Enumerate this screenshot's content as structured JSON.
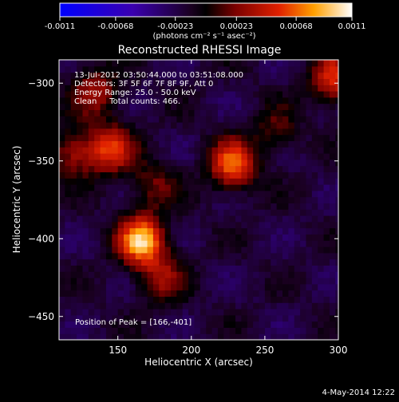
{
  "colorbar": {
    "tick_labels": [
      "-0.0011",
      "-0.00068",
      "-0.00023",
      "0.00023",
      "0.00068",
      "0.0011"
    ],
    "unit_label": "(photons cm⁻² s⁻¹ asec⁻²)",
    "range": [
      -0.0011,
      0.0011
    ]
  },
  "chart_data": {
    "type": "heatmap",
    "title": "Reconstructed RHESSI Image",
    "xlabel": "Heliocentric X (arcsec)",
    "ylabel": "Heliocentric Y (arcsec)",
    "xlim": [
      110,
      300
    ],
    "ylim": [
      -465,
      -285
    ],
    "x_ticks": [
      150,
      200,
      250,
      300
    ],
    "y_ticks": [
      -300,
      -350,
      -400,
      -450
    ],
    "annotation_lines": [
      "13-Jul-2012 03:50:44.000 to 03:51:08.000",
      "Detectors: 3F 5F 6F 7F 8F 9F, Att 0",
      "Energy Range: 25.0 - 50.0 keV",
      "Clean     Total counts: 466."
    ],
    "peak_label": "Position of Peak = [166,-401]",
    "peak": [
      166,
      -401
    ],
    "sources": [
      {
        "x": 166,
        "y": -401,
        "value": 0.0011
      },
      {
        "x": 228,
        "y": -352,
        "value": 0.00085
      },
      {
        "x": 145,
        "y": -342,
        "value": 0.0007
      },
      {
        "x": 120,
        "y": -345,
        "value": 0.0005
      },
      {
        "x": 297,
        "y": -297,
        "value": 0.0007
      },
      {
        "x": 180,
        "y": -425,
        "value": 0.00045
      },
      {
        "x": 135,
        "y": -305,
        "value": 0.0005
      },
      {
        "x": 175,
        "y": -365,
        "value": 0.00035
      },
      {
        "x": 258,
        "y": -330,
        "value": 0.0003
      }
    ]
  },
  "footer": {
    "date": "4-May-2014 12:22"
  }
}
